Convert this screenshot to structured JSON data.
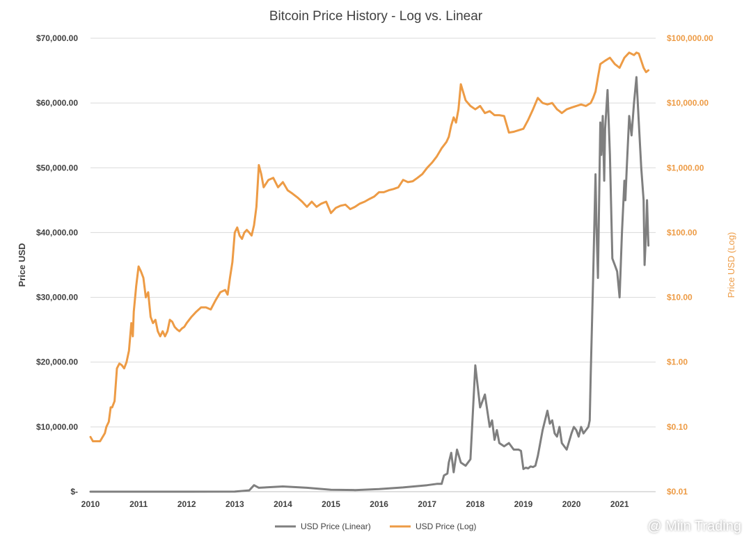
{
  "chart_data": {
    "type": "line",
    "title": "Bitcoin Price History - Log vs. Linear",
    "ylabel": "Price USD",
    "y2label": "Price USD (Log)",
    "x_ticks": [
      "2010",
      "2011",
      "2012",
      "2013",
      "2014",
      "2015",
      "2016",
      "2017",
      "2018",
      "2019",
      "2020",
      "2021"
    ],
    "xlim": [
      2010.0,
      2021.75
    ],
    "ylim": [
      0,
      70000
    ],
    "y_ticks": [
      {
        "value": 0,
        "label": "$-"
      },
      {
        "value": 10000,
        "label": "$10,000.00"
      },
      {
        "value": 20000,
        "label": "$20,000.00"
      },
      {
        "value": 30000,
        "label": "$30,000.00"
      },
      {
        "value": 40000,
        "label": "$40,000.00"
      },
      {
        "value": 50000,
        "label": "$50,000.00"
      },
      {
        "value": 60000,
        "label": "$60,000.00"
      },
      {
        "value": 70000,
        "label": "$70,000.00"
      }
    ],
    "y2lim": [
      0.01,
      100000
    ],
    "y2_scale": "log",
    "y2_ticks": [
      {
        "value": 0.01,
        "label": "$0.01"
      },
      {
        "value": 0.1,
        "label": "$0.10"
      },
      {
        "value": 1,
        "label": "$1.00"
      },
      {
        "value": 10,
        "label": "$10.00"
      },
      {
        "value": 100,
        "label": "$100.00"
      },
      {
        "value": 1000,
        "label": "$1,000.00"
      },
      {
        "value": 10000,
        "label": "$10,000.00"
      },
      {
        "value": 100000,
        "label": "$100,000.00"
      }
    ],
    "grid": true,
    "legend_position": "bottom",
    "series": [
      {
        "name": "USD Price (Linear)",
        "axis": "left",
        "color": "#7f7f7f",
        "x": [
          2010.0,
          2011.0,
          2012.0,
          2013.0,
          2013.3,
          2013.4,
          2013.5,
          2014.0,
          2014.5,
          2015.0,
          2015.5,
          2016.0,
          2016.5,
          2017.0,
          2017.2,
          2017.3,
          2017.35,
          2017.42,
          2017.45,
          2017.5,
          2017.55,
          2017.62,
          2017.7,
          2017.8,
          2017.9,
          2018.0,
          2018.1,
          2018.2,
          2018.3,
          2018.35,
          2018.4,
          2018.45,
          2018.5,
          2018.6,
          2018.7,
          2018.8,
          2018.85,
          2018.9,
          2018.95,
          2019.0,
          2019.05,
          2019.1,
          2019.15,
          2019.2,
          2019.25,
          2019.3,
          2019.4,
          2019.5,
          2019.55,
          2019.6,
          2019.65,
          2019.7,
          2019.75,
          2019.8,
          2019.9,
          2020.0,
          2020.05,
          2020.1,
          2020.15,
          2020.2,
          2020.25,
          2020.3,
          2020.35,
          2020.38,
          2020.4,
          2020.42,
          2020.45,
          2020.5,
          2020.52,
          2020.55,
          2020.6,
          2020.62,
          2020.65,
          2020.68,
          2020.7,
          2020.75,
          2020.8,
          2020.85,
          2020.9,
          2020.95,
          2021.0,
          2021.05,
          2021.1,
          2021.12,
          2021.15,
          2021.2,
          2021.25,
          2021.3,
          2021.35,
          2021.4,
          2021.45,
          2021.5,
          2021.52,
          2021.55,
          2021.57,
          2021.6
        ],
        "values": [
          0.1,
          0.3,
          5,
          13,
          200,
          1000,
          600,
          800,
          600,
          300,
          250,
          400,
          650,
          1000,
          1200,
          1200,
          2500,
          2800,
          4500,
          6000,
          3000,
          6500,
          4500,
          4000,
          5000,
          19500,
          13000,
          15000,
          10000,
          11000,
          8000,
          9500,
          7500,
          7000,
          7500,
          6500,
          6500,
          6500,
          6300,
          3500,
          3700,
          3600,
          3900,
          3800,
          4000,
          5500,
          9500,
          12500,
          10500,
          11000,
          9000,
          8500,
          10000,
          7500,
          6500,
          9000,
          10000,
          9500,
          8500,
          10000,
          9000,
          9500,
          10000,
          11000,
          18000,
          24000,
          33000,
          49000,
          41000,
          33000,
          57000,
          52000,
          58000,
          48000,
          56000,
          62000,
          52000,
          36000,
          35000,
          34000,
          30000,
          40000,
          48000,
          45000,
          50000,
          58000,
          55000,
          60000,
          64000,
          57000,
          50000,
          45000,
          35000,
          40000,
          45000,
          38000
        ]
      },
      {
        "name": "USD Price (Log)",
        "axis": "right",
        "color": "#ed9b45",
        "x": [
          2010.0,
          2010.05,
          2010.15,
          2010.2,
          2010.3,
          2010.33,
          2010.38,
          2010.42,
          2010.45,
          2010.5,
          2010.55,
          2010.6,
          2010.65,
          2010.7,
          2010.75,
          2010.8,
          2010.85,
          2010.88,
          2010.9,
          2010.95,
          2011.0,
          2011.05,
          2011.1,
          2011.15,
          2011.2,
          2011.25,
          2011.3,
          2011.35,
          2011.4,
          2011.45,
          2011.5,
          2011.55,
          2011.6,
          2011.65,
          2011.7,
          2011.75,
          2011.8,
          2011.85,
          2011.9,
          2011.95,
          2012.0,
          2012.1,
          2012.2,
          2012.3,
          2012.4,
          2012.5,
          2012.6,
          2012.7,
          2012.8,
          2012.85,
          2012.9,
          2012.95,
          2013.0,
          2013.05,
          2013.1,
          2013.15,
          2013.2,
          2013.25,
          2013.3,
          2013.35,
          2013.4,
          2013.45,
          2013.5,
          2013.55,
          2013.6,
          2013.7,
          2013.8,
          2013.9,
          2014.0,
          2014.1,
          2014.2,
          2014.3,
          2014.4,
          2014.5,
          2014.6,
          2014.7,
          2014.8,
          2014.9,
          2015.0,
          2015.1,
          2015.2,
          2015.3,
          2015.4,
          2015.5,
          2015.6,
          2015.7,
          2015.8,
          2015.9,
          2016.0,
          2016.1,
          2016.2,
          2016.3,
          2016.4,
          2016.5,
          2016.6,
          2016.7,
          2016.8,
          2016.9,
          2017.0,
          2017.1,
          2017.2,
          2017.3,
          2017.4,
          2017.45,
          2017.5,
          2017.55,
          2017.6,
          2017.65,
          2017.7,
          2017.8,
          2017.9,
          2018.0,
          2018.1,
          2018.2,
          2018.3,
          2018.4,
          2018.5,
          2018.6,
          2018.7,
          2018.8,
          2018.9,
          2019.0,
          2019.1,
          2019.2,
          2019.3,
          2019.4,
          2019.5,
          2019.6,
          2019.7,
          2019.75,
          2019.8,
          2019.9,
          2020.0,
          2020.1,
          2020.2,
          2020.3,
          2020.4,
          2020.45,
          2020.5,
          2020.55,
          2020.6,
          2020.7,
          2020.8,
          2020.9,
          2021.0,
          2021.1,
          2021.2,
          2021.3,
          2021.35,
          2021.4,
          2021.45,
          2021.5,
          2021.55,
          2021.6
        ],
        "values": [
          0.07,
          0.06,
          0.06,
          0.06,
          0.08,
          0.1,
          0.12,
          0.2,
          0.2,
          0.25,
          0.8,
          0.95,
          0.9,
          0.8,
          1.0,
          1.5,
          4.0,
          2.5,
          6.0,
          15.0,
          30.0,
          25.0,
          20.0,
          10.0,
          12.0,
          5.0,
          4.0,
          4.5,
          3.0,
          2.5,
          3.0,
          2.5,
          3.0,
          4.5,
          4.2,
          3.5,
          3.2,
          3.0,
          3.3,
          3.5,
          4.0,
          5.0,
          6.0,
          7.0,
          7.0,
          6.5,
          9.0,
          12.0,
          13.0,
          11.0,
          20.0,
          35.0,
          100.0,
          120.0,
          90.0,
          80.0,
          100.0,
          110.0,
          100.0,
          90.0,
          130.0,
          250.0,
          1100.0,
          800.0,
          500.0,
          650.0,
          700.0,
          500.0,
          600.0,
          450.0,
          400.0,
          350.0,
          300.0,
          250.0,
          300.0,
          250.0,
          280.0,
          300.0,
          200.0,
          240.0,
          260.0,
          270.0,
          230.0,
          250.0,
          280.0,
          300.0,
          330.0,
          360.0,
          420.0,
          420.0,
          450.0,
          470.0,
          500.0,
          650.0,
          600.0,
          620.0,
          700.0,
          800.0,
          1000.0,
          1200.0,
          1500.0,
          2000.0,
          2500.0,
          3000.0,
          4500.0,
          6000.0,
          5000.0,
          8000.0,
          19500.0,
          11000.0,
          9000.0,
          8000.0,
          9000.0,
          7000.0,
          7500.0,
          6500.0,
          6500.0,
          6300.0,
          3500.0,
          3600.0,
          3800.0,
          4000.0,
          5500.0,
          8000.0,
          12000.0,
          10000.0,
          9500.0,
          10000.0,
          8000.0,
          7500.0,
          7000.0,
          8000.0,
          8500.0,
          9000.0,
          9500.0,
          9000.0,
          10000.0,
          12000.0,
          15000.0,
          25000.0,
          40000.0,
          45000.0,
          50000.0,
          40000.0,
          35000.0,
          50000.0,
          60000.0,
          55000.0,
          60000.0,
          58000.0,
          45000.0,
          35000.0,
          30000.0,
          32000.0
        ]
      }
    ]
  },
  "watermark": {
    "text": "@ Miin Trading",
    "icon": "brand-logo-icon"
  }
}
